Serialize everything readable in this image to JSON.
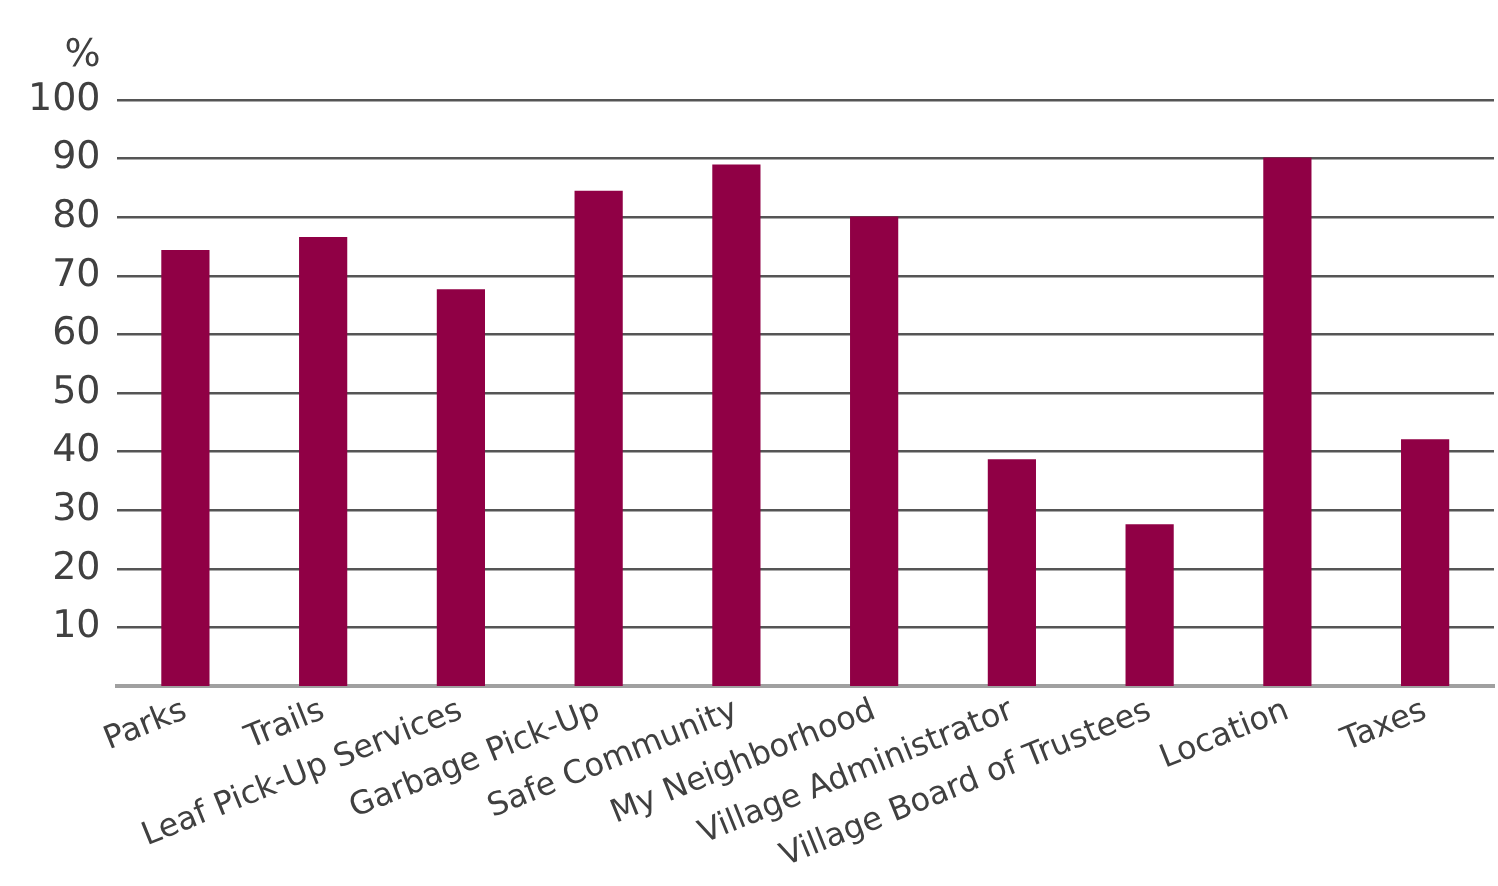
{
  "chart_data": {
    "type": "bar",
    "ylabel": "%",
    "categories": [
      "Parks",
      "Trails",
      "Leaf Pick-Up Services",
      "Garbage Pick-Up",
      "Safe Community",
      "My Neighborhood",
      "Village Administrator",
      "Village Board of Trustees",
      "Location",
      "Taxes"
    ],
    "values": [
      74.4,
      76.6,
      67.7,
      84.5,
      89.0,
      80.1,
      38.7,
      27.6,
      90.2,
      42.1
    ],
    "color": "#900045",
    "ylim": [
      0,
      100
    ],
    "yticks": [
      10,
      20,
      30,
      40,
      50,
      60,
      70,
      80,
      90,
      100
    ],
    "grid": "y"
  }
}
